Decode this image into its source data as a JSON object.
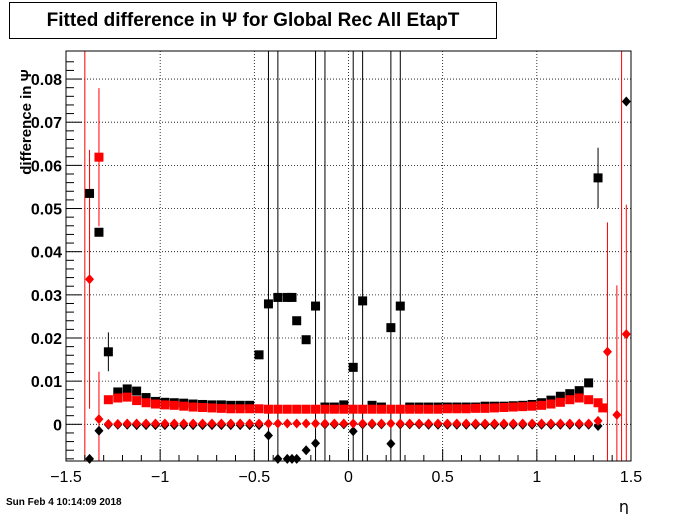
{
  "title": "Fitted difference in  Ψ  for Global Rec All EtapT",
  "footer": "Sun Feb  4 10:14:09 2018",
  "chart_data": {
    "type": "scatter",
    "title": "Fitted difference in  Ψ  for Global Rec All EtapT",
    "xlabel": "η",
    "ylabel": "difference in  Ψ",
    "xlim": [
      -1.5,
      1.5
    ],
    "ylim": [
      -0.0085,
      0.0865
    ],
    "grid": true,
    "xticks": [
      -1.5,
      -1,
      -0.5,
      0,
      0.5,
      1,
      1.5
    ],
    "xtick_labels": [
      "−1.5",
      "−1",
      "−0.5",
      "0",
      "0.5",
      "1",
      "1.5"
    ],
    "yticks": [
      0,
      0.01,
      0.02,
      0.03,
      0.04,
      0.05,
      0.06,
      0.07,
      0.08
    ],
    "ytick_labels": [
      "0",
      "0.01",
      "0.02",
      "0.03",
      "0.04",
      "0.05",
      "0.06",
      "0.07",
      "0.08"
    ],
    "colors": {
      "black_series": "#000000",
      "red_series": "#ff0000"
    },
    "series": [
      {
        "marker": "square",
        "color": "#000000",
        "x": [
          -1.375,
          -1.325,
          -1.275,
          -1.225,
          -1.175,
          -1.125,
          -1.075,
          -1.025,
          -0.975,
          -0.925,
          -0.875,
          -0.825,
          -0.775,
          -0.725,
          -0.675,
          -0.625,
          -0.575,
          -0.525,
          -0.475,
          -0.425,
          -0.375,
          -0.325,
          -0.3,
          -0.275,
          -0.225,
          -0.175,
          -0.125,
          -0.075,
          -0.025,
          0.025,
          0.075,
          0.125,
          0.175,
          0.225,
          0.275,
          0.325,
          0.375,
          0.425,
          0.475,
          0.525,
          0.575,
          0.625,
          0.675,
          0.725,
          0.775,
          0.825,
          0.875,
          0.925,
          0.975,
          1.025,
          1.075,
          1.125,
          1.175,
          1.225,
          1.275,
          1.325
        ],
        "y": [
          0.0535,
          0.0445,
          0.0168,
          0.0075,
          0.0082,
          0.0077,
          0.0062,
          0.0053,
          0.0051,
          0.005,
          0.0049,
          0.0047,
          0.0046,
          0.0045,
          0.0045,
          0.0044,
          0.0044,
          0.0044,
          0.0161,
          0.0279,
          0.0294,
          0.0294,
          0.0294,
          0.024,
          0.0196,
          0.0274,
          0.004,
          0.004,
          0.0045,
          0.0132,
          0.0286,
          0.0044,
          0.004,
          0.0224,
          0.0274,
          0.004,
          0.004,
          0.004,
          0.004,
          0.004,
          0.004,
          0.004,
          0.004,
          0.0042,
          0.0042,
          0.0042,
          0.0043,
          0.0044,
          0.0046,
          0.005,
          0.0056,
          0.0065,
          0.0071,
          0.0078,
          0.0096,
          0.0571
        ],
        "yerr": [
          0.0,
          0.0,
          0.0045,
          0.0,
          0.0,
          0.0,
          0.0,
          0.0,
          0.0,
          0.0,
          0.0,
          0.0,
          0.0,
          0.0,
          0.0,
          0.0,
          0.0,
          0.0,
          0.0,
          0.0,
          0.0,
          0.0,
          0.0,
          0.0,
          0.0,
          0.0,
          0.0,
          0.0,
          0.0,
          0.0,
          0.0,
          0.0,
          0.0,
          0.0,
          0.0,
          0.0,
          0.0,
          0.0,
          0.0,
          0.0,
          0.0,
          0.0,
          0.0,
          0.0,
          0.0,
          0.0,
          0.0,
          0.0,
          0.0,
          0.0,
          0.0,
          0.0,
          0.0,
          0.0,
          0.0,
          0.007
        ]
      },
      {
        "marker": "square",
        "color": "#ff0000",
        "x": [
          -1.325,
          -1.275,
          -1.225,
          -1.175,
          -1.125,
          -1.075,
          -1.025,
          -0.975,
          -0.925,
          -0.875,
          -0.825,
          -0.775,
          -0.725,
          -0.675,
          -0.625,
          -0.575,
          -0.525,
          -0.475,
          -0.425,
          -0.375,
          -0.325,
          -0.275,
          -0.225,
          -0.175,
          -0.125,
          -0.075,
          -0.025,
          0.025,
          0.075,
          0.125,
          0.175,
          0.225,
          0.275,
          0.325,
          0.375,
          0.425,
          0.475,
          0.525,
          0.575,
          0.625,
          0.675,
          0.725,
          0.775,
          0.825,
          0.875,
          0.925,
          0.975,
          1.025,
          1.075,
          1.125,
          1.175,
          1.225,
          1.275,
          1.325,
          1.35
        ],
        "y": [
          0.0619,
          0.0057,
          0.0061,
          0.0063,
          0.0055,
          0.005,
          0.0047,
          0.0045,
          0.0044,
          0.0042,
          0.004,
          0.0039,
          0.0038,
          0.0037,
          0.0036,
          0.0036,
          0.0036,
          0.0036,
          0.0035,
          0.0035,
          0.0035,
          0.0035,
          0.0035,
          0.0035,
          0.0035,
          0.0035,
          0.0035,
          0.0035,
          0.0035,
          0.0035,
          0.0035,
          0.0035,
          0.0035,
          0.0035,
          0.0035,
          0.0035,
          0.0035,
          0.0036,
          0.0036,
          0.0036,
          0.0037,
          0.0037,
          0.0038,
          0.0039,
          0.004,
          0.0041,
          0.0042,
          0.0044,
          0.0047,
          0.0051,
          0.0057,
          0.0061,
          0.0057,
          0.005,
          0.0038
        ],
        "yerr": [
          0.016,
          0.0,
          0.0,
          0.0,
          0.0,
          0.0,
          0.0,
          0.0,
          0.0,
          0.0,
          0.0,
          0.0,
          0.0,
          0.0,
          0.0,
          0.0,
          0.0,
          0.0,
          0.0,
          0.0,
          0.0,
          0.0,
          0.0,
          0.0,
          0.0,
          0.0,
          0.0,
          0.0,
          0.0,
          0.0,
          0.0,
          0.0,
          0.0,
          0.0,
          0.0,
          0.0,
          0.0,
          0.0,
          0.0,
          0.0,
          0.0,
          0.0,
          0.0,
          0.0,
          0.0,
          0.0,
          0.0,
          0.0,
          0.0,
          0.0,
          0.0,
          0.0,
          0.0,
          0.0,
          0.0
        ]
      },
      {
        "marker": "diamond",
        "color": "#000000",
        "x": [
          -1.375,
          -1.325,
          -1.275,
          -1.225,
          -1.175,
          -1.125,
          -1.075,
          -1.025,
          -0.975,
          -0.925,
          -0.875,
          -0.825,
          -0.775,
          -0.725,
          -0.675,
          -0.625,
          -0.575,
          -0.525,
          -0.475,
          -0.425,
          -0.375,
          -0.325,
          -0.3,
          -0.275,
          -0.225,
          -0.175,
          -0.125,
          -0.075,
          -0.025,
          0.025,
          0.075,
          0.125,
          0.175,
          0.225,
          0.275,
          0.325,
          0.375,
          0.425,
          0.475,
          0.525,
          0.575,
          0.625,
          0.675,
          0.725,
          0.775,
          0.825,
          0.875,
          0.925,
          0.975,
          1.025,
          1.075,
          1.125,
          1.175,
          1.225,
          1.275,
          1.325,
          1.475
        ],
        "y": [
          -0.008,
          -0.0015,
          -0.0001,
          -0.0001,
          -0.0001,
          -0.0002,
          -0.0002,
          -0.0002,
          -0.0002,
          -0.0002,
          -0.0002,
          -0.0002,
          -0.0002,
          -0.0002,
          -0.0002,
          -0.0002,
          -0.0002,
          -0.0002,
          -0.0002,
          -0.0026,
          -0.008,
          -0.008,
          -0.008,
          -0.008,
          -0.006,
          -0.0044,
          0.0,
          0.0,
          0.0,
          -0.0016,
          0.0,
          0.0,
          0.0,
          -0.0045,
          0.0,
          0.0,
          0.0,
          -0.0001,
          -0.0001,
          -0.0001,
          -0.0001,
          -0.0001,
          -0.0001,
          -0.0001,
          -0.0001,
          -0.0001,
          -0.0001,
          -0.0001,
          -0.0001,
          -0.0001,
          -0.0001,
          -0.0001,
          -0.0001,
          -0.0001,
          -0.0001,
          -0.0004,
          0.0748
        ]
      },
      {
        "marker": "diamond",
        "color": "#ff0000",
        "x": [
          -1.375,
          -1.325,
          -1.275,
          -1.225,
          -1.175,
          -1.125,
          -1.075,
          -1.025,
          -0.975,
          -0.925,
          -0.875,
          -0.825,
          -0.775,
          -0.725,
          -0.675,
          -0.625,
          -0.575,
          -0.525,
          -0.475,
          -0.425,
          -0.375,
          -0.325,
          -0.275,
          -0.225,
          -0.175,
          -0.125,
          -0.075,
          -0.025,
          0.025,
          0.075,
          0.125,
          0.175,
          0.225,
          0.275,
          0.325,
          0.375,
          0.425,
          0.475,
          0.525,
          0.575,
          0.625,
          0.675,
          0.725,
          0.775,
          0.825,
          0.875,
          0.925,
          0.975,
          1.025,
          1.075,
          1.125,
          1.175,
          1.225,
          1.275,
          1.325,
          1.375,
          1.425,
          1.475
        ],
        "y": [
          0.0336,
          0.0012,
          0.0001,
          0.0001,
          0.0002,
          0.0002,
          0.0002,
          0.0002,
          0.0002,
          0.0002,
          0.0002,
          0.0002,
          0.0002,
          0.0002,
          0.0002,
          0.0002,
          0.0002,
          0.0002,
          0.0002,
          0.0002,
          0.0002,
          0.0002,
          0.0002,
          0.0002,
          0.0002,
          0.0002,
          0.0002,
          0.0002,
          0.0002,
          0.0002,
          0.0002,
          0.0002,
          0.0002,
          0.0002,
          0.0002,
          0.0002,
          0.0002,
          0.0002,
          0.0002,
          0.0002,
          0.0002,
          0.0002,
          0.0002,
          0.0002,
          0.0002,
          0.0002,
          0.0002,
          0.0002,
          0.0002,
          0.0002,
          0.0002,
          0.0002,
          0.0002,
          0.0002,
          0.0008,
          0.0168,
          0.0022,
          0.0209
        ],
        "yerr": [
          0.03,
          0.011,
          0.0,
          0.0,
          0.0,
          0.0,
          0.0,
          0.0,
          0.0,
          0.0,
          0.0,
          0.0,
          0.0,
          0.0,
          0.0,
          0.0,
          0.0,
          0.0,
          0.0,
          0.0,
          0.0,
          0.0,
          0.0,
          0.0,
          0.0,
          0.0,
          0.0,
          0.0,
          0.0,
          0.0,
          0.0,
          0.0,
          0.0,
          0.0,
          0.0,
          0.0,
          0.0,
          0.0,
          0.0,
          0.0,
          0.0,
          0.0,
          0.0,
          0.0,
          0.0,
          0.0,
          0.0,
          0.0,
          0.0,
          0.0,
          0.0,
          0.0,
          0.0,
          0.0,
          0.0,
          0.03,
          0.03,
          0.03
        ]
      }
    ],
    "tall_error_bars": {
      "color": "#000000",
      "x": [
        -0.425,
        -0.375,
        -0.175,
        -0.125,
        0.025,
        0.075,
        0.225,
        0.275
      ]
    },
    "tall_error_bars_red": {
      "color": "#ff0000",
      "x": [
        -1.4,
        1.45
      ]
    }
  }
}
